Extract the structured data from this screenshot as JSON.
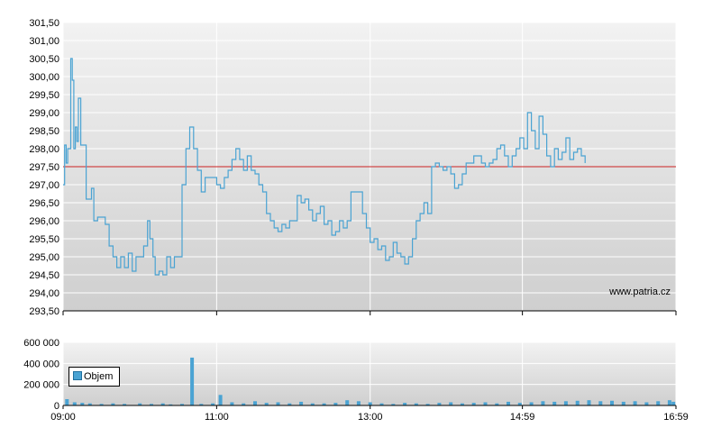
{
  "colors": {
    "price_line": "#4aa3d3",
    "reference_line": "#cc2222",
    "volume_bar": "#4aa3d3"
  },
  "watermark": "www.patria.cz",
  "legend": {
    "volume_label": "Objem"
  },
  "chart_data": [
    {
      "type": "line",
      "ylim": [
        293.5,
        301.5
      ],
      "y_ticks": [
        "293,50",
        "294,00",
        "294,50",
        "295,00",
        "295,50",
        "296,00",
        "296,50",
        "297,00",
        "297,50",
        "298,00",
        "298,50",
        "299,00",
        "299,50",
        "300,00",
        "300,50",
        "301,00",
        "301,50"
      ],
      "x_ticks": [
        "09:00",
        "11:00",
        "13:00",
        "14:59",
        "16:59"
      ],
      "x_tick_hours": [
        9.0,
        11.0,
        13.0,
        14.983,
        16.983
      ],
      "xlim_hours": [
        9.0,
        16.983
      ],
      "reference_line": 297.5,
      "series": [
        {
          "points": [
            [
              9.0,
              297.0
            ],
            [
              9.02,
              298.1
            ],
            [
              9.04,
              297.6
            ],
            [
              9.06,
              298.0
            ],
            [
              9.1,
              300.5
            ],
            [
              9.12,
              299.9
            ],
            [
              9.14,
              298.0
            ],
            [
              9.16,
              298.6
            ],
            [
              9.18,
              298.2
            ],
            [
              9.2,
              299.4
            ],
            [
              9.23,
              298.1
            ],
            [
              9.28,
              298.1
            ],
            [
              9.3,
              296.6
            ],
            [
              9.35,
              296.6
            ],
            [
              9.37,
              296.9
            ],
            [
              9.4,
              296.0
            ],
            [
              9.45,
              296.1
            ],
            [
              9.5,
              296.1
            ],
            [
              9.55,
              295.9
            ],
            [
              9.6,
              295.3
            ],
            [
              9.65,
              295.0
            ],
            [
              9.7,
              294.7
            ],
            [
              9.75,
              295.0
            ],
            [
              9.8,
              294.7
            ],
            [
              9.85,
              295.1
            ],
            [
              9.9,
              294.6
            ],
            [
              9.95,
              295.0
            ],
            [
              10.0,
              295.0
            ],
            [
              10.05,
              295.3
            ],
            [
              10.1,
              296.0
            ],
            [
              10.13,
              295.5
            ],
            [
              10.17,
              295.0
            ],
            [
              10.2,
              294.5
            ],
            [
              10.25,
              294.6
            ],
            [
              10.3,
              294.5
            ],
            [
              10.35,
              295.0
            ],
            [
              10.4,
              294.7
            ],
            [
              10.45,
              295.0
            ],
            [
              10.5,
              295.0
            ],
            [
              10.55,
              297.0
            ],
            [
              10.6,
              298.0
            ],
            [
              10.65,
              298.6
            ],
            [
              10.7,
              298.0
            ],
            [
              10.75,
              297.4
            ],
            [
              10.8,
              296.8
            ],
            [
              10.85,
              297.2
            ],
            [
              10.9,
              297.2
            ],
            [
              10.95,
              297.2
            ],
            [
              11.0,
              297.0
            ],
            [
              11.05,
              296.9
            ],
            [
              11.1,
              297.2
            ],
            [
              11.15,
              297.4
            ],
            [
              11.2,
              297.7
            ],
            [
              11.25,
              298.0
            ],
            [
              11.3,
              297.7
            ],
            [
              11.35,
              297.4
            ],
            [
              11.4,
              297.8
            ],
            [
              11.45,
              297.4
            ],
            [
              11.5,
              297.3
            ],
            [
              11.55,
              297.0
            ],
            [
              11.6,
              296.8
            ],
            [
              11.65,
              296.2
            ],
            [
              11.7,
              296.0
            ],
            [
              11.75,
              295.8
            ],
            [
              11.8,
              295.7
            ],
            [
              11.85,
              295.9
            ],
            [
              11.9,
              295.8
            ],
            [
              11.95,
              296.0
            ],
            [
              12.0,
              296.0
            ],
            [
              12.05,
              296.7
            ],
            [
              12.1,
              296.5
            ],
            [
              12.15,
              296.6
            ],
            [
              12.2,
              296.3
            ],
            [
              12.25,
              296.0
            ],
            [
              12.3,
              296.2
            ],
            [
              12.35,
              296.4
            ],
            [
              12.4,
              295.9
            ],
            [
              12.45,
              296.0
            ],
            [
              12.5,
              295.6
            ],
            [
              12.55,
              295.7
            ],
            [
              12.6,
              296.0
            ],
            [
              12.65,
              295.8
            ],
            [
              12.7,
              296.0
            ],
            [
              12.75,
              296.8
            ],
            [
              12.8,
              296.8
            ],
            [
              12.85,
              296.8
            ],
            [
              12.9,
              296.2
            ],
            [
              12.95,
              295.8
            ],
            [
              13.0,
              295.4
            ],
            [
              13.05,
              295.5
            ],
            [
              13.1,
              295.2
            ],
            [
              13.15,
              295.3
            ],
            [
              13.2,
              294.9
            ],
            [
              13.25,
              295.0
            ],
            [
              13.3,
              295.4
            ],
            [
              13.35,
              295.1
            ],
            [
              13.4,
              295.0
            ],
            [
              13.45,
              294.8
            ],
            [
              13.5,
              295.0
            ],
            [
              13.55,
              295.5
            ],
            [
              13.6,
              296.0
            ],
            [
              13.65,
              296.2
            ],
            [
              13.7,
              296.5
            ],
            [
              13.75,
              296.2
            ],
            [
              13.8,
              297.5
            ],
            [
              13.85,
              297.6
            ],
            [
              13.9,
              297.5
            ],
            [
              13.95,
              297.4
            ],
            [
              14.0,
              297.5
            ],
            [
              14.05,
              297.3
            ],
            [
              14.1,
              296.9
            ],
            [
              14.15,
              297.0
            ],
            [
              14.2,
              297.3
            ],
            [
              14.25,
              297.6
            ],
            [
              14.3,
              297.6
            ],
            [
              14.35,
              297.8
            ],
            [
              14.4,
              297.8
            ],
            [
              14.45,
              297.6
            ],
            [
              14.5,
              297.5
            ],
            [
              14.55,
              297.6
            ],
            [
              14.6,
              297.7
            ],
            [
              14.65,
              298.0
            ],
            [
              14.7,
              298.1
            ],
            [
              14.75,
              297.8
            ],
            [
              14.8,
              297.5
            ],
            [
              14.85,
              297.8
            ],
            [
              14.9,
              298.0
            ],
            [
              14.95,
              298.3
            ],
            [
              15.0,
              298.0
            ],
            [
              15.05,
              299.0
            ],
            [
              15.1,
              298.5
            ],
            [
              15.15,
              298.0
            ],
            [
              15.2,
              298.9
            ],
            [
              15.25,
              298.4
            ],
            [
              15.3,
              297.8
            ],
            [
              15.35,
              297.5
            ],
            [
              15.4,
              298.0
            ],
            [
              15.45,
              297.7
            ],
            [
              15.5,
              297.9
            ],
            [
              15.55,
              298.3
            ],
            [
              15.6,
              297.7
            ],
            [
              15.65,
              297.9
            ],
            [
              15.7,
              298.0
            ],
            [
              15.75,
              297.8
            ],
            [
              15.8,
              297.6
            ]
          ]
        }
      ]
    },
    {
      "type": "bar",
      "ylim": [
        0,
        600000
      ],
      "y_ticks": [
        "0",
        "200 000",
        "400 000",
        "600 000"
      ],
      "x_ticks": [
        "09:00",
        "11:00",
        "13:00",
        "14:59",
        "16:59"
      ],
      "xlim_hours": [
        9.0,
        16.983
      ],
      "series": [
        {
          "name": "Objem",
          "points": [
            [
              9.05,
              60000
            ],
            [
              9.15,
              30000
            ],
            [
              9.25,
              25000
            ],
            [
              9.35,
              20000
            ],
            [
              9.5,
              15000
            ],
            [
              9.65,
              20000
            ],
            [
              9.8,
              15000
            ],
            [
              10.0,
              20000
            ],
            [
              10.15,
              15000
            ],
            [
              10.3,
              20000
            ],
            [
              10.4,
              10000
            ],
            [
              10.55,
              15000
            ],
            [
              10.68,
              455000
            ],
            [
              10.8,
              15000
            ],
            [
              10.95,
              20000
            ],
            [
              11.05,
              100000
            ],
            [
              11.2,
              30000
            ],
            [
              11.35,
              20000
            ],
            [
              11.5,
              40000
            ],
            [
              11.65,
              25000
            ],
            [
              11.8,
              30000
            ],
            [
              11.95,
              20000
            ],
            [
              12.1,
              35000
            ],
            [
              12.25,
              20000
            ],
            [
              12.4,
              20000
            ],
            [
              12.55,
              25000
            ],
            [
              12.7,
              50000
            ],
            [
              12.85,
              40000
            ],
            [
              13.0,
              30000
            ],
            [
              13.15,
              20000
            ],
            [
              13.3,
              15000
            ],
            [
              13.45,
              25000
            ],
            [
              13.6,
              20000
            ],
            [
              13.75,
              15000
            ],
            [
              13.9,
              25000
            ],
            [
              14.05,
              30000
            ],
            [
              14.2,
              20000
            ],
            [
              14.35,
              25000
            ],
            [
              14.5,
              30000
            ],
            [
              14.65,
              20000
            ],
            [
              14.8,
              35000
            ],
            [
              14.95,
              25000
            ],
            [
              15.1,
              30000
            ],
            [
              15.25,
              40000
            ],
            [
              15.4,
              35000
            ],
            [
              15.55,
              40000
            ],
            [
              15.7,
              45000
            ],
            [
              15.85,
              50000
            ],
            [
              16.0,
              40000
            ],
            [
              16.15,
              45000
            ],
            [
              16.3,
              35000
            ],
            [
              16.45,
              40000
            ],
            [
              16.6,
              30000
            ],
            [
              16.75,
              40000
            ],
            [
              16.9,
              50000
            ],
            [
              16.95,
              35000
            ]
          ]
        }
      ]
    }
  ]
}
